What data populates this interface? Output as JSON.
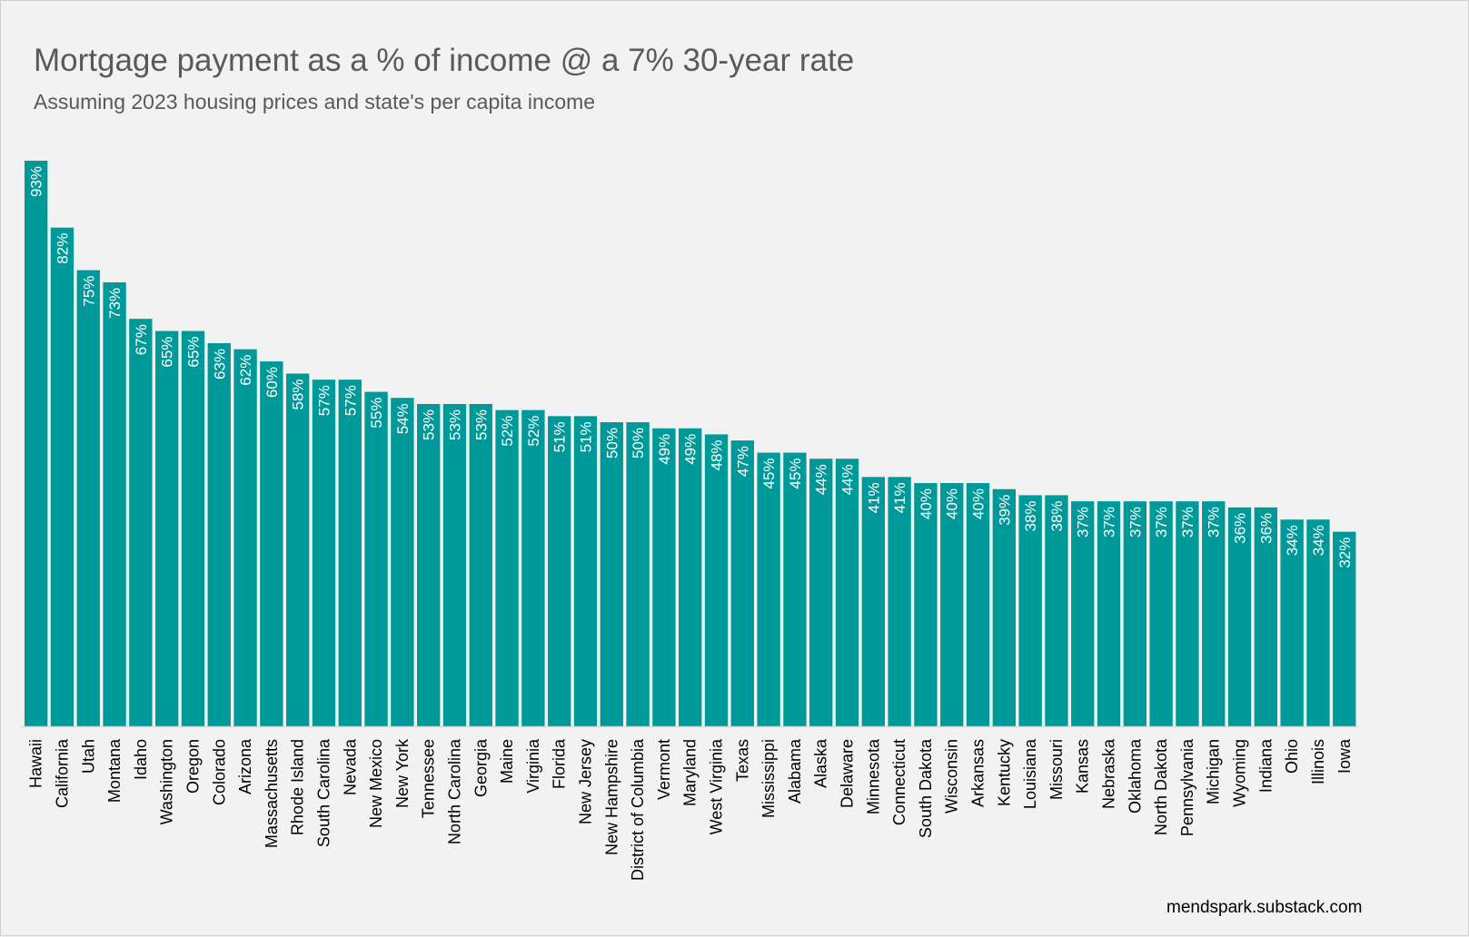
{
  "chart_data": {
    "type": "bar",
    "title": "Mortgage payment as a % of income @ a 7% 30-year rate",
    "subtitle": "Assuming 2023 housing prices and state's per capita income",
    "source": "mendspark.substack.com",
    "xlabel": "",
    "ylabel": "",
    "ylim": [
      0,
      100
    ],
    "grid": false,
    "bar_color": "#00999a",
    "axis_color": "#d9d9d9",
    "categories": [
      "Hawaii",
      "California",
      "Utah",
      "Montana",
      "Idaho",
      "Washington",
      "Oregon",
      "Colorado",
      "Arizona",
      "Massachusetts",
      "Rhode Island",
      "South Carolina",
      "Nevada",
      "New Mexico",
      "New York",
      "Tennessee",
      "North Carolina",
      "Georgia",
      "Maine",
      "Virginia",
      "Florida",
      "New Jersey",
      "New Hampshire",
      "District of Columbia",
      "Vermont",
      "Maryland",
      "West Virginia",
      "Texas",
      "Mississippi",
      "Alabama",
      "Alaska",
      "Delaware",
      "Minnesota",
      "Connecticut",
      "South Dakota",
      "Wisconsin",
      "Arkansas",
      "Kentucky",
      "Louisiana",
      "Missouri",
      "Kansas",
      "Nebraska",
      "Oklahoma",
      "North Dakota",
      "Pennsylvania",
      "Michigan",
      "Wyoming",
      "Indiana",
      "Ohio",
      "Illinois",
      "Iowa"
    ],
    "values": [
      93,
      82,
      75,
      73,
      67,
      65,
      65,
      63,
      62,
      60,
      58,
      57,
      57,
      55,
      54,
      53,
      53,
      53,
      52,
      52,
      51,
      51,
      50,
      50,
      49,
      49,
      48,
      47,
      45,
      45,
      44,
      44,
      41,
      41,
      40,
      40,
      40,
      39,
      38,
      38,
      37,
      37,
      37,
      37,
      37,
      37,
      36,
      36,
      34,
      34,
      32
    ],
    "labels": [
      "93%",
      "82%",
      "75%",
      "73%",
      "67%",
      "65%",
      "65%",
      "63%",
      "62%",
      "60%",
      "58%",
      "57%",
      "57%",
      "55%",
      "54%",
      "53%",
      "53%",
      "53%",
      "52%",
      "52%",
      "51%",
      "51%",
      "50%",
      "50%",
      "49%",
      "49%",
      "48%",
      "47%",
      "45%",
      "45%",
      "44%",
      "44%",
      "41%",
      "41%",
      "40%",
      "40%",
      "40%",
      "39%",
      "38%",
      "38%",
      "37%",
      "37%",
      "37%",
      "37%",
      "37%",
      "37%",
      "36%",
      "36%",
      "34%",
      "34%",
      "32%"
    ]
  }
}
